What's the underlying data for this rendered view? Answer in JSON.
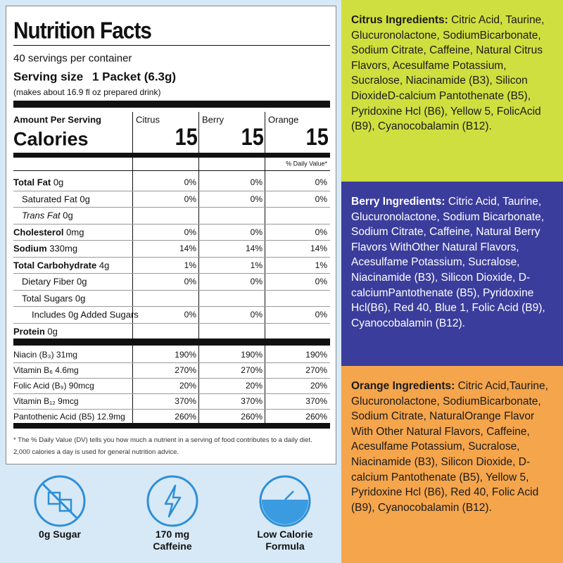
{
  "nutrition_label": {
    "title": "Nutrition Facts",
    "servings": "40 servings per container",
    "serving_size_label": "Serving size",
    "serving_size_value": "1 Packet (6.3g)",
    "makes": "(makes about 16.9 fl oz prepared drink)",
    "amount_per_serving": "Amount Per Serving",
    "calories_label": "Calories",
    "columns": [
      {
        "name": "Citrus",
        "calories": "15"
      },
      {
        "name": "Berry",
        "calories": "15"
      },
      {
        "name": "Orange",
        "calories": "15"
      }
    ],
    "daily_value_header": "% Daily Value*",
    "rows": [
      {
        "name": "Total Fat",
        "amount": "0g",
        "values": [
          "0%",
          "0%",
          "0%"
        ]
      },
      {
        "name": "Saturated Fat",
        "amount": "0g",
        "values": [
          "0%",
          "0%",
          "0%"
        ]
      },
      {
        "name": "Trans Fat",
        "amount": "0g"
      },
      {
        "name": "Cholesterol",
        "amount": "0mg",
        "values": [
          "0%",
          "0%",
          "0%"
        ]
      },
      {
        "name": "Sodium",
        "amount": "330mg",
        "values": [
          "14%",
          "14%",
          "14%"
        ]
      },
      {
        "name": "Total Carbohydrate",
        "amount": "4g",
        "values": [
          "1%",
          "1%",
          "1%"
        ]
      },
      {
        "name": "Dietary Fiber",
        "amount": "0g",
        "values": [
          "0%",
          "0%",
          "0%"
        ]
      },
      {
        "name": "Total Sugars",
        "amount": "0g"
      },
      {
        "name": "Includes 0g Added Sugars",
        "amount": "",
        "values": [
          "0%",
          "0%",
          "0%"
        ]
      },
      {
        "name": "Protein",
        "amount": "0g"
      }
    ],
    "vitamins": [
      {
        "name": "Niacin (B₃) 31mg",
        "values": [
          "190%",
          "190%",
          "190%"
        ]
      },
      {
        "name": "Vitamin B₆ 4.6mg",
        "values": [
          "270%",
          "270%",
          "270%"
        ]
      },
      {
        "name": "Folic Acid (B₉) 90mcg",
        "values": [
          "20%",
          "20%",
          "20%"
        ]
      },
      {
        "name": "Vitamin B₁₂ 9mcg",
        "values": [
          "370%",
          "370%",
          "370%"
        ]
      },
      {
        "name": "Pantothenic Acid (B5) 12.9mg",
        "values": [
          "260%",
          "260%",
          "260%"
        ]
      }
    ],
    "footnote": "* The % Daily Value (DV) tells you how much a nutrient in a serving of food contributes to a daily diet. 2,000 calories a day is used for general nutrition advice."
  },
  "features": [
    "0g Sugar",
    "170 mg Caffeine",
    "Low Calorie Formula"
  ],
  "ingredients": [
    {
      "label": "Citrus Ingredients:",
      "text": "Citric Acid, Taurine, Glucuronolactone, SodiumBicarbonate, Sodium Citrate, Caffeine, Natural Citrus Flavors, Acesulfame Potassium, Sucralose, Niacinamide (B3), Silicon DioxideD-calcium Pantothenate (B5), Pyridoxine Hcl (B6), Yellow 5, FolicAcid (B9), Cyanocobalamin (B12)."
    },
    {
      "label": "Berry Ingredients:",
      "text": "Citric Acid, Taurine, Glucuronolactone, Sodium Bicarbonate, Sodium Citrate, Caffeine, Natural Berry Flavors WithOther Natural Flavors, Acesulfame Potassium, Sucralose, Niacinamide (B3), Silicon Dioxide, D-calciumPantothenate (B5), Pyridoxine Hcl(B6), Red 40, Blue 1, Folic Acid (B9), Cyanocobalamin (B12)."
    },
    {
      "label": "Orange Ingredients:",
      "text": "Citric Acid,Taurine, Glucuronolactone, SodiumBicarbonate, Sodium Citrate, NaturalOrange Flavor With Other Natural Flavors, Caffeine, Acesulfame Potassium, Sucralose, Niacinamide (B3), Silicon Dioxide, D-calcium Pantothenate (B5), Yellow 5, Pyridoxine Hcl (B6), Red 40, Folic Acid (B9), Cyanocobalamin (B12)."
    }
  ]
}
